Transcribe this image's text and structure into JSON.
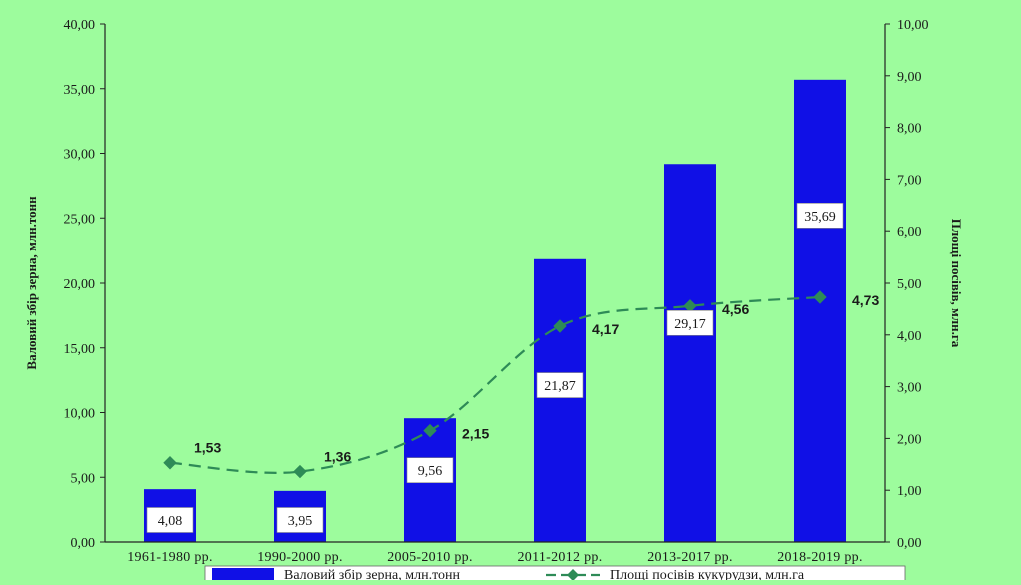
{
  "chart_data": {
    "type": "bar",
    "categories": [
      "1961-1980 рр.",
      "1990-2000 рр.",
      "2005-2010 рр.",
      "2011-2012 рр.",
      "2013-2017 рр.",
      "2018-2019 рр."
    ],
    "series": [
      {
        "name": "Валовий збір зерна, млн.тонн",
        "type": "bar",
        "axis": "left",
        "values": [
          4.08,
          3.95,
          9.56,
          21.87,
          29.17,
          35.69
        ],
        "labels": [
          "4,08",
          "3,95",
          "9,56",
          "21,87",
          "29,17",
          "35,69"
        ]
      },
      {
        "name": "Площі посівів кукурудзи, млн.га",
        "type": "line",
        "axis": "right",
        "values": [
          1.53,
          1.36,
          2.15,
          4.17,
          4.56,
          4.73
        ],
        "labels": [
          "1,53",
          "1,36",
          "2,15",
          "4,17",
          "4,56",
          "4,73"
        ]
      }
    ],
    "ylabel": "Валовий збір зерна, млн.тонн",
    "y2label": "Площі посівів, млн.га",
    "ylim": [
      0,
      40
    ],
    "y2lim": [
      0,
      10
    ],
    "yticks": [
      "0,00",
      "5,00",
      "10,00",
      "15,00",
      "20,00",
      "25,00",
      "30,00",
      "35,00",
      "40,00"
    ],
    "y2ticks": [
      "0,00",
      "1,00",
      "2,00",
      "3,00",
      "4,00",
      "5,00",
      "6,00",
      "7,00",
      "8,00",
      "9,00",
      "10,00"
    ],
    "grid": false,
    "legend_position": "bottom",
    "colors": {
      "background": "#9dfc9d",
      "bar": "#1010e6",
      "line": "#2e8b57",
      "marker": "#2e8b57"
    }
  }
}
